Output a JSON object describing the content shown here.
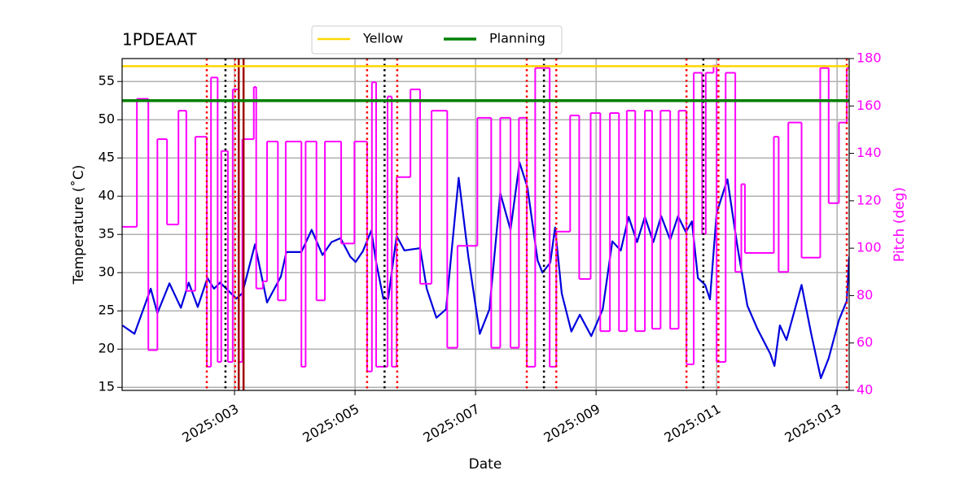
{
  "chart_data": {
    "type": "line",
    "title": "1PDEAAT",
    "xlabel": "Date",
    "ylabel": "Temperature (˚C)",
    "y2label": "Pitch (deg)",
    "y2color": "#ff00ff",
    "grid": true,
    "legend": "upper center",
    "xlim": [
      1.135,
      13.2
    ],
    "xticks": [
      {
        "value": 3,
        "label": "2025:003"
      },
      {
        "value": 5,
        "label": "2025:005"
      },
      {
        "value": 7,
        "label": "2025:007"
      },
      {
        "value": 9,
        "label": "2025:009"
      },
      {
        "value": 11,
        "label": "2025:011"
      },
      {
        "value": 13,
        "label": "2025:013"
      }
    ],
    "ylim": [
      14.6,
      58
    ],
    "yticks": [
      15,
      20,
      25,
      30,
      35,
      40,
      45,
      50,
      55
    ],
    "y2lim": [
      40,
      180
    ],
    "y2ticks": [
      40,
      60,
      80,
      100,
      120,
      140,
      160,
      180
    ],
    "hlines": [
      {
        "name": "Yellow",
        "color": "#ffd700",
        "value": 57
      },
      {
        "name": "Planning",
        "color": "#008000",
        "value": 52.5
      }
    ],
    "vlines": [
      {
        "color": "#ff0000",
        "style": "dotted",
        "x": [
          2.54,
          3.01,
          5.2,
          5.7,
          7.85,
          8.34,
          10.5,
          11.03,
          13.16
        ]
      },
      {
        "color": "#a00000",
        "style": "solid",
        "x": [
          3.07,
          3.15
        ]
      },
      {
        "color": "#000000",
        "style": "dotted",
        "x": [
          2.85,
          5.49,
          8.135,
          10.78
        ]
      }
    ],
    "series": [
      {
        "color": "#0000dd",
        "x": [
          1.14,
          1.34,
          1.61,
          1.72,
          1.92,
          2.11,
          2.24,
          2.39,
          2.55,
          2.66,
          2.76,
          2.89,
          3.03,
          3.13,
          3.34,
          3.54,
          3.77,
          3.86,
          4.11,
          4.28,
          4.46,
          4.61,
          4.76,
          4.92,
          5.01,
          5.13,
          5.27,
          5.35,
          5.47,
          5.55,
          5.69,
          5.82,
          6.08,
          6.19,
          6.35,
          6.51,
          6.72,
          6.88,
          7.07,
          7.23,
          7.41,
          7.58,
          7.73,
          7.86,
          8.03,
          8.11,
          8.24,
          8.32,
          8.43,
          8.59,
          8.73,
          8.92,
          9.11,
          9.27,
          9.41,
          9.54,
          9.68,
          9.81,
          9.95,
          10.08,
          10.23,
          10.36,
          10.49,
          10.59,
          10.69,
          10.81,
          10.89,
          11.0,
          11.18,
          11.34,
          11.51,
          11.68,
          11.89,
          11.96,
          12.05,
          12.16,
          12.41,
          12.57,
          12.73,
          12.86,
          13.03,
          13.16,
          13.2
        ],
        "values": [
          23.1,
          22.0,
          27.9,
          24.7,
          28.6,
          25.4,
          28.7,
          25.5,
          29.3,
          27.9,
          28.7,
          27.7,
          26.6,
          27.3,
          33.7,
          26.1,
          29.5,
          32.7,
          32.7,
          35.6,
          32.3,
          34.0,
          34.5,
          32.1,
          31.4,
          32.8,
          35.5,
          31.4,
          26.6,
          26.6,
          34.8,
          32.9,
          33.2,
          27.9,
          24.1,
          25.2,
          42.4,
          32.1,
          22.0,
          25.2,
          40.4,
          35.6,
          44.4,
          41.2,
          31.6,
          30.0,
          31.3,
          35.9,
          27.3,
          22.3,
          24.5,
          21.7,
          25.2,
          34.1,
          32.9,
          37.3,
          34.0,
          37.3,
          34.0,
          37.4,
          34.3,
          37.4,
          35.3,
          36.7,
          29.3,
          28.4,
          26.5,
          37.8,
          42.2,
          33.7,
          25.7,
          22.6,
          19.4,
          17.8,
          23.1,
          21.2,
          28.4,
          22.0,
          16.2,
          18.8,
          23.8,
          26.3,
          32.1
        ]
      },
      {
        "color": "#ff00ff",
        "axis": "y2",
        "step": "post",
        "x": [
          1.14,
          1.38,
          1.57,
          1.72,
          1.88,
          2.07,
          2.2,
          2.35,
          2.54,
          2.61,
          2.72,
          2.78,
          2.89,
          2.97,
          3.07,
          3.13,
          3.32,
          3.36,
          3.47,
          3.54,
          3.72,
          3.85,
          4.11,
          4.18,
          4.36,
          4.5,
          4.77,
          4.99,
          5.2,
          5.28,
          5.35,
          5.54,
          5.61,
          5.69,
          5.92,
          6.08,
          6.27,
          6.53,
          6.7,
          7.03,
          7.26,
          7.41,
          7.58,
          7.72,
          7.85,
          7.99,
          8.23,
          8.34,
          8.57,
          8.72,
          8.91,
          9.07,
          9.23,
          9.38,
          9.51,
          9.65,
          9.81,
          9.93,
          10.07,
          10.23,
          10.37,
          10.5,
          10.62,
          10.76,
          10.82,
          10.95,
          11.0,
          11.15,
          11.31,
          11.41,
          11.47,
          11.95,
          12.03,
          12.19,
          12.41,
          12.72,
          12.86,
          13.03,
          13.16
        ],
        "values": [
          109,
          163,
          57,
          146,
          110,
          158,
          82,
          147,
          50,
          172,
          52,
          141,
          52,
          167,
          52,
          146,
          168,
          83,
          86,
          145,
          78,
          145,
          50,
          145,
          78,
          145,
          102,
          145,
          48,
          170,
          50,
          164,
          50,
          130,
          167,
          85,
          158,
          58,
          101,
          155,
          58,
          155,
          58,
          155,
          50,
          176,
          50,
          107,
          156,
          87,
          157,
          65,
          157,
          65,
          158,
          65,
          158,
          66,
          158,
          66,
          158,
          51,
          174,
          106,
          174,
          177,
          52,
          174,
          90,
          127,
          98,
          147,
          90,
          153,
          96,
          176,
          119,
          153,
          176
        ]
      }
    ]
  }
}
